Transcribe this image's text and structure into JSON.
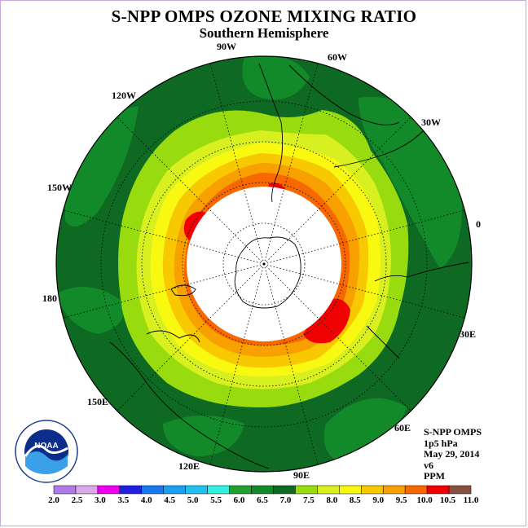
{
  "title": "S-NPP OMPS OZONE MIXING RATIO",
  "subtitle": "Southern Hemisphere",
  "longitude_labels": [
    "90W",
    "60W",
    "30W",
    "0",
    "30E",
    "60E",
    "90E",
    "120E",
    "150E",
    "180",
    "150W",
    "120W"
  ],
  "info": {
    "instrument": "S-NPP OMPS",
    "level": "1p5 hPa",
    "date": "May 29, 2014",
    "version": "v6",
    "units": "PPM"
  },
  "logo_text": "NOAA",
  "colorbar": {
    "ticks": [
      "2.0",
      "2.5",
      "3.0",
      "3.5",
      "4.0",
      "4.5",
      "5.0",
      "5.5",
      "6.0",
      "6.5",
      "7.0",
      "7.5",
      "8.0",
      "8.5",
      "9.0",
      "9.5",
      "10.0",
      "10.5",
      "11.0"
    ],
    "colors": [
      "#b07ae8",
      "#d8a8e8",
      "#f000f0",
      "#2020e0",
      "#1878f0",
      "#1aa0f0",
      "#20c0f0",
      "#30f0e0",
      "#22a030",
      "#138a2a",
      "#0e6a22",
      "#98dc10",
      "#d8f020",
      "#f8f810",
      "#f8c800",
      "#f8a000",
      "#f86800",
      "#f00000",
      "#885040"
    ]
  },
  "map_colors": {
    "ocean_dark": "#0e6a22",
    "band_65": "#138a2a",
    "band_75": "#98dc10",
    "band_8": "#d8f020",
    "band_85": "#f8f810",
    "band_9": "#f8c800",
    "band_95": "#f8a000",
    "band_10": "#f86800",
    "band_105": "#f00000"
  }
}
